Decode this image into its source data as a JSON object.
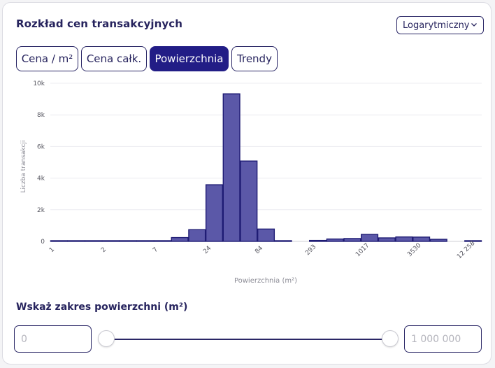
{
  "header": {
    "title": "Rozkład cen transakcyjnych",
    "scale_select": {
      "value": "Logarytmiczny",
      "icon": "chevron-down-icon"
    }
  },
  "tabs": [
    {
      "label": "Cena / m²",
      "active": false
    },
    {
      "label": "Cena całk.",
      "active": false
    },
    {
      "label": "Powierzchnia",
      "active": true
    },
    {
      "label": "Trendy",
      "active": false
    }
  ],
  "chart_data": {
    "type": "bar",
    "xlabel": "Powierzchnia (m²)",
    "ylabel": "Liczba transakcji",
    "x_scale": "log",
    "x_tick_labels": [
      "1",
      "2",
      "7",
      "24",
      "84",
      "293",
      "1017",
      "3530",
      "12 258"
    ],
    "y_tick_labels": [
      "0",
      "2k",
      "4k",
      "6k",
      "8k",
      "10k"
    ],
    "ylim": [
      0,
      10000
    ],
    "grid": true,
    "values": [
      10,
      10,
      10,
      10,
      10,
      10,
      10,
      240,
      740,
      3580,
      9330,
      5080,
      780,
      40,
      0,
      60,
      150,
      180,
      440,
      220,
      280,
      270,
      130,
      0,
      10
    ],
    "bar_color": "#5b58a8",
    "bar_outline": "#1f1c74"
  },
  "range": {
    "title": "Wskaż zakres powierzchni (m²)",
    "min_placeholder": "0",
    "max_placeholder": "1 000 000",
    "min_fraction": 0,
    "max_fraction": 1
  }
}
